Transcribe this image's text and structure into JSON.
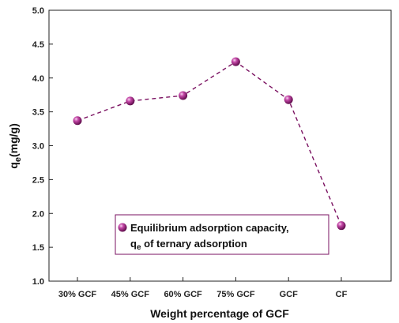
{
  "chart_data": {
    "type": "line",
    "categories": [
      "30% GCF",
      "45% GCF",
      "60% GCF",
      "75% GCF",
      "GCF",
      "CF"
    ],
    "values": [
      3.37,
      3.66,
      3.74,
      4.24,
      3.68,
      1.82
    ],
    "xlabel": "Weight percentage of GCF",
    "ylabel_main": "q",
    "ylabel_sub": "e",
    "ylabel_unit": "(mg/g)",
    "ylim": [
      1.0,
      5.0
    ],
    "yticks": [
      "1.0",
      "1.5",
      "2.0",
      "2.5",
      "3.0",
      "3.5",
      "4.0",
      "4.5",
      "5.0"
    ],
    "series": [
      {
        "legend_line1": "Equilibrium adsorption capacity,",
        "legend_line2_main": "q",
        "legend_line2_sub": "e",
        "legend_line2_rest": " of ternary adsorption",
        "line_style": "dashed",
        "color": "#7a1060",
        "marker": "sphere"
      }
    ],
    "legend_placement": "bottom-center",
    "legend_border_color": "#7a1060",
    "grid": false
  }
}
